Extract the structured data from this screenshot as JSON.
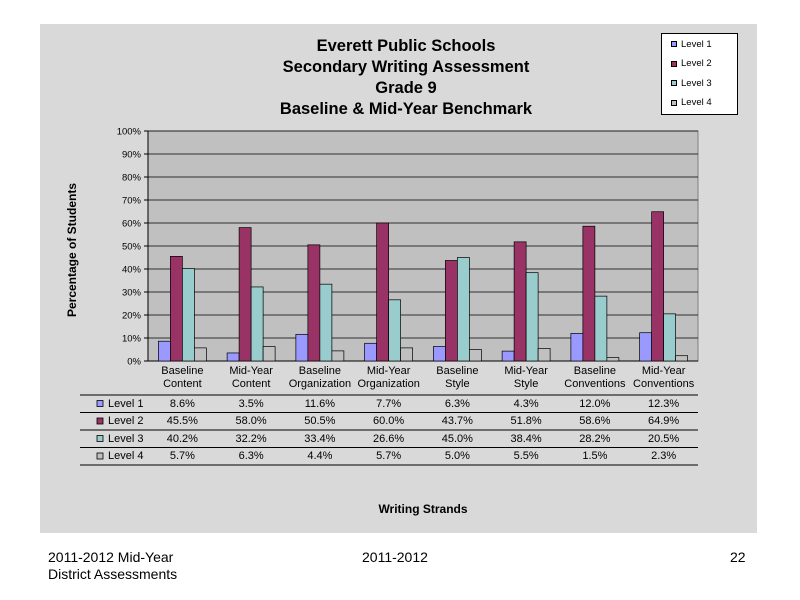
{
  "footer": {
    "left_line1": "2011-2012  Mid-Year",
    "left_line2": "District Assessments",
    "center": "2011-2012",
    "page_number": "22"
  },
  "chart_data": {
    "type": "bar",
    "title_lines": [
      "Everett Public Schools",
      "Secondary Writing Assessment",
      "Grade 9",
      "Baseline & Mid-Year Benchmark"
    ],
    "ylabel": "Percentage of Students",
    "xlabel": "Writing Strands",
    "ylim": [
      0,
      100
    ],
    "yticks": [
      "0%",
      "10%",
      "20%",
      "30%",
      "40%",
      "50%",
      "60%",
      "70%",
      "80%",
      "90%",
      "100%"
    ],
    "grid": true,
    "legend_position": "top-right",
    "categories": [
      [
        "Baseline",
        "Content"
      ],
      [
        "Mid-Year",
        "Content"
      ],
      [
        "Baseline",
        "Organization"
      ],
      [
        "Mid-Year",
        "Organization"
      ],
      [
        "Baseline",
        "Style"
      ],
      [
        "Mid-Year",
        "Style"
      ],
      [
        "Baseline",
        "Conventions"
      ],
      [
        "Mid-Year",
        "Conventions"
      ]
    ],
    "series": [
      {
        "name": "Level 1",
        "color": "#9999ff",
        "values": [
          8.6,
          3.5,
          11.6,
          7.7,
          6.3,
          4.3,
          12.0,
          12.3
        ],
        "labels": [
          "8.6%",
          "3.5%",
          "11.6%",
          "7.7%",
          "6.3%",
          "4.3%",
          "12.0%",
          "12.3%"
        ]
      },
      {
        "name": "Level 2",
        "color": "#993366",
        "values": [
          45.5,
          58.0,
          50.5,
          60.0,
          43.7,
          51.8,
          58.6,
          64.9
        ],
        "labels": [
          "45.5%",
          "58.0%",
          "50.5%",
          "60.0%",
          "43.7%",
          "51.8%",
          "58.6%",
          "64.9%"
        ]
      },
      {
        "name": "Level 3",
        "color": "#99cccc",
        "values": [
          40.2,
          32.2,
          33.4,
          26.6,
          45.0,
          38.4,
          28.2,
          20.5
        ],
        "labels": [
          "40.2%",
          "32.2%",
          "33.4%",
          "26.6%",
          "45.0%",
          "38.4%",
          "28.2%",
          "20.5%"
        ]
      },
      {
        "name": "Level 4",
        "color": "#c0c0c0",
        "values": [
          5.7,
          6.3,
          4.4,
          5.7,
          5.0,
          5.5,
          1.5,
          2.3
        ],
        "labels": [
          "5.7%",
          "6.3%",
          "4.4%",
          "5.7%",
          "5.0%",
          "5.5%",
          "1.5%",
          "2.3%"
        ]
      }
    ]
  }
}
